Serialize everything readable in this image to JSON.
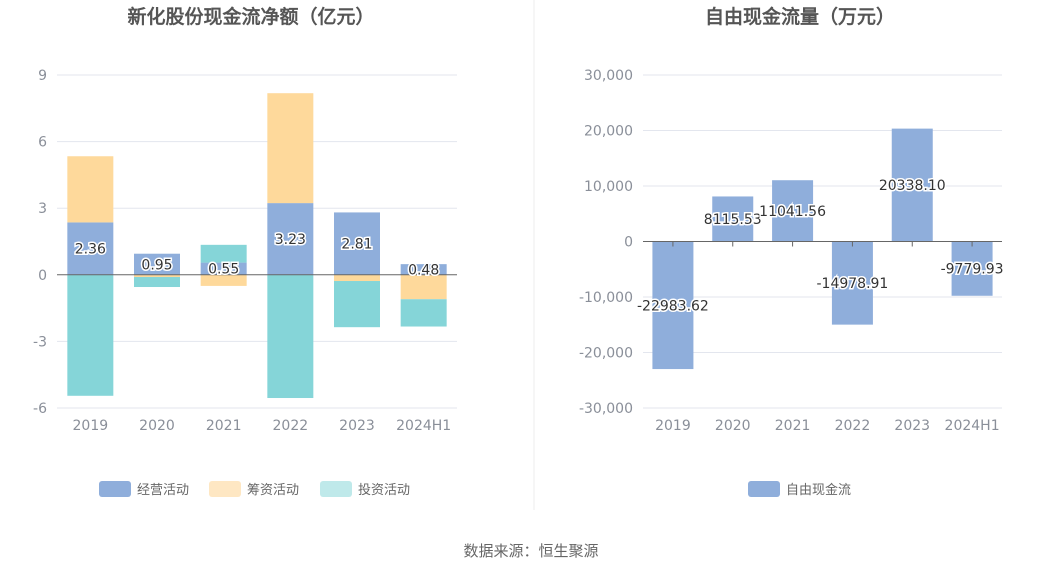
{
  "colors": {
    "operating": "#8faedb",
    "financing": "#fed99b",
    "investing": "#85d5d8",
    "fcf": "#8faedb",
    "grid": "#e3e6ee",
    "axis_text": "#8a8f99",
    "title_text": "#555555",
    "zero_line": "#666666"
  },
  "source_label": "数据来源：恒生聚源",
  "chart_data": [
    {
      "type": "bar",
      "stacked": true,
      "title": "新化股份现金流净额（亿元）",
      "categories": [
        "2019",
        "2020",
        "2021",
        "2022",
        "2023",
        "2024H1"
      ],
      "yticks": [
        9,
        6,
        3,
        0,
        -3,
        -6
      ],
      "ylim": [
        -6,
        9
      ],
      "grid": true,
      "legend_position": "bottom",
      "series": [
        {
          "name": "经营活动",
          "values": [
            2.36,
            0.95,
            0.55,
            3.23,
            2.81,
            0.48
          ],
          "show_labels": true
        },
        {
          "name": "筹资活动",
          "values": [
            2.98,
            -0.1,
            -0.5,
            4.95,
            -0.28,
            -1.1
          ]
        },
        {
          "name": "投资活动",
          "values": [
            -5.45,
            -0.45,
            0.8,
            -5.55,
            -2.08,
            -1.23
          ]
        }
      ]
    },
    {
      "type": "bar",
      "title": "自由现金流量（万元）",
      "categories": [
        "2019",
        "2020",
        "2021",
        "2022",
        "2023",
        "2024H1"
      ],
      "yticks": [
        "30,000",
        "20,000",
        "10,000",
        "0",
        "-10,000",
        "-20,000",
        "-30,000"
      ],
      "ylim": [
        -30000,
        30000
      ],
      "grid": true,
      "legend_position": "bottom",
      "series": [
        {
          "name": "自由现金流",
          "values": [
            -22983.62,
            8115.53,
            11041.56,
            -14978.91,
            20338.1,
            -9779.93
          ],
          "labels": [
            "-22983.62",
            "8115.53",
            "11041.56",
            "-14978.91",
            "20338.10",
            "-9779.93"
          ]
        }
      ]
    }
  ]
}
